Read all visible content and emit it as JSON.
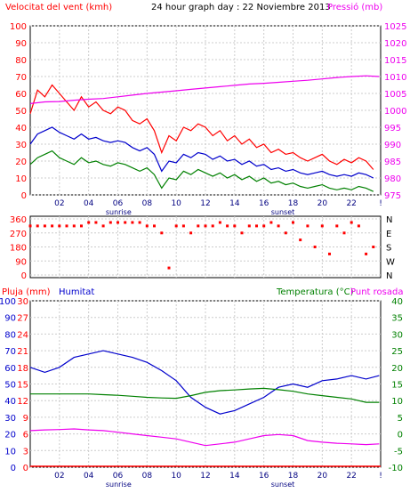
{
  "header": {
    "wind_label": "Velocitat del vent (kmh)",
    "title": "24 hour graph day : 22 Noviembre 2013",
    "pressure_label": "Pressió (mb)"
  },
  "lower_header": {
    "rain_label": "Pluja (mm)",
    "humidity_label": "Humitat",
    "temperature_label": "Temperatura (°C)",
    "dewpoint_label": "Punt rosada"
  },
  "colors": {
    "wind_gust": "#ff0000",
    "wind_avg": "#0000cc",
    "wind_low": "#008000",
    "pressure": "#ee00ee",
    "direction": "#ff0000",
    "rain": "#ff0000",
    "humidity": "#0000cc",
    "temperature": "#008000",
    "dewpoint": "#ee00ee",
    "axis_red": "#ff0000",
    "axis_magenta": "#ee00ee",
    "axis_green": "#008000",
    "axis_blue": "#0000cc",
    "time_labels": "#000080",
    "grid": "#cccccc"
  },
  "chart_data": [
    {
      "type": "line",
      "name": "wind_pressure",
      "title": "24 hour graph day : 22 Noviembre 2013",
      "x_ticks": [
        "02",
        "04",
        "06",
        "08",
        "10",
        "12",
        "14",
        "16",
        "18",
        "20",
        "22",
        "!"
      ],
      "x_range": [
        0,
        24
      ],
      "markers": [
        "sunrise",
        "sunset"
      ],
      "y_left": {
        "label": "Velocitat del vent (kmh)",
        "range": [
          0,
          100
        ],
        "ticks": [
          0,
          10,
          20,
          30,
          40,
          50,
          60,
          70,
          80,
          90,
          100
        ]
      },
      "y_right": {
        "label": "Pressió (mb)",
        "range": [
          975,
          1025
        ],
        "ticks": [
          975,
          980,
          985,
          990,
          995,
          1000,
          1005,
          1010,
          1015,
          1020,
          1025
        ]
      },
      "series": [
        {
          "role": "wind_gust",
          "axis": "left",
          "x": [
            0,
            0.5,
            1,
            1.5,
            2,
            2.5,
            3,
            3.5,
            4,
            4.5,
            5,
            5.5,
            6,
            6.5,
            7,
            7.5,
            8,
            8.5,
            9,
            9.5,
            10,
            10.5,
            11,
            11.5,
            12,
            12.5,
            13,
            13.5,
            14,
            14.5,
            15,
            15.5,
            16,
            16.5,
            17,
            17.5,
            18,
            18.5,
            19,
            19.5,
            20,
            20.5,
            21,
            21.5,
            22,
            22.5,
            23,
            23.5
          ],
          "y": [
            48,
            62,
            58,
            65,
            60,
            55,
            50,
            58,
            52,
            55,
            50,
            48,
            52,
            50,
            44,
            42,
            45,
            38,
            25,
            35,
            32,
            40,
            38,
            42,
            40,
            35,
            38,
            32,
            35,
            30,
            33,
            28,
            30,
            25,
            27,
            24,
            25,
            22,
            20,
            22,
            24,
            20,
            18,
            21,
            19,
            22,
            20,
            15
          ]
        },
        {
          "role": "wind_avg",
          "axis": "left",
          "x": [
            0,
            0.5,
            1,
            1.5,
            2,
            2.5,
            3,
            3.5,
            4,
            4.5,
            5,
            5.5,
            6,
            6.5,
            7,
            7.5,
            8,
            8.5,
            9,
            9.5,
            10,
            10.5,
            11,
            11.5,
            12,
            12.5,
            13,
            13.5,
            14,
            14.5,
            15,
            15.5,
            16,
            16.5,
            17,
            17.5,
            18,
            18.5,
            19,
            19.5,
            20,
            20.5,
            21,
            21.5,
            22,
            22.5,
            23,
            23.5
          ],
          "y": [
            30,
            36,
            38,
            40,
            37,
            35,
            33,
            36,
            33,
            34,
            32,
            31,
            32,
            31,
            28,
            26,
            28,
            24,
            14,
            20,
            19,
            24,
            22,
            25,
            24,
            21,
            23,
            20,
            21,
            18,
            20,
            17,
            18,
            15,
            16,
            14,
            15,
            13,
            12,
            13,
            14,
            12,
            11,
            12,
            11,
            13,
            12,
            10
          ]
        },
        {
          "role": "wind_low",
          "axis": "left",
          "x": [
            0,
            0.5,
            1,
            1.5,
            2,
            2.5,
            3,
            3.5,
            4,
            4.5,
            5,
            5.5,
            6,
            6.5,
            7,
            7.5,
            8,
            8.5,
            9,
            9.5,
            10,
            10.5,
            11,
            11.5,
            12,
            12.5,
            13,
            13.5,
            14,
            14.5,
            15,
            15.5,
            16,
            16.5,
            17,
            17.5,
            18,
            18.5,
            19,
            19.5,
            20,
            20.5,
            21,
            21.5,
            22,
            22.5,
            23,
            23.5
          ],
          "y": [
            18,
            22,
            24,
            26,
            22,
            20,
            18,
            22,
            19,
            20,
            18,
            17,
            19,
            18,
            16,
            14,
            16,
            12,
            4,
            10,
            9,
            14,
            12,
            15,
            13,
            11,
            13,
            10,
            12,
            9,
            11,
            8,
            10,
            7,
            8,
            6,
            7,
            5,
            4,
            5,
            6,
            4,
            3,
            4,
            3,
            5,
            4,
            2
          ]
        },
        {
          "role": "pressure",
          "axis": "right",
          "x": [
            0,
            1,
            2,
            3,
            4,
            5,
            6,
            7,
            8,
            9,
            10,
            11,
            12,
            13,
            14,
            15,
            16,
            17,
            18,
            19,
            20,
            21,
            22,
            23,
            23.9
          ],
          "y": [
            1002,
            1002.5,
            1002.6,
            1003,
            1003.3,
            1003.5,
            1004,
            1004.5,
            1005,
            1005.4,
            1005.8,
            1006.2,
            1006.6,
            1007,
            1007.4,
            1007.8,
            1008,
            1008.3,
            1008.6,
            1008.9,
            1009.3,
            1009.7,
            1010,
            1010.2,
            1010
          ]
        }
      ]
    },
    {
      "type": "scatter",
      "name": "wind_direction",
      "y_left": {
        "range": [
          0,
          360
        ],
        "ticks": [
          0,
          90,
          180,
          270,
          360
        ]
      },
      "y_right": {
        "ticks": [
          "N",
          "W",
          "S",
          "E",
          "N"
        ]
      },
      "x": [
        0,
        0.5,
        1,
        1.5,
        2,
        2.5,
        3,
        3.5,
        4,
        4.5,
        5,
        5.5,
        6,
        6.5,
        7,
        7.5,
        8,
        8.5,
        9,
        9.5,
        10,
        10.5,
        11,
        11.5,
        12,
        12.5,
        13,
        13.5,
        14,
        14.5,
        15,
        15.5,
        16,
        16.5,
        17,
        17.5,
        18,
        18.5,
        19,
        19.5,
        20,
        20.5,
        21,
        21.5,
        22,
        22.5,
        23,
        23.5
      ],
      "y": [
        315,
        315,
        315,
        315,
        315,
        315,
        315,
        315,
        337,
        337,
        315,
        337,
        337,
        337,
        337,
        337,
        315,
        315,
        270,
        45,
        315,
        315,
        270,
        315,
        315,
        315,
        337,
        315,
        315,
        270,
        315,
        315,
        315,
        337,
        315,
        270,
        337,
        225,
        315,
        180,
        315,
        135,
        315,
        270,
        337,
        315,
        135,
        180
      ]
    },
    {
      "type": "line",
      "name": "rain_humidity_temp",
      "x_ticks": [
        "02",
        "04",
        "06",
        "08",
        "10",
        "12",
        "14",
        "16",
        "18",
        "20",
        "22",
        "!"
      ],
      "x_range": [
        0,
        24
      ],
      "markers": [
        "sunrise",
        "sunset"
      ],
      "y_left_rain": {
        "label": "Pluja (mm)",
        "range": [
          0,
          30
        ],
        "ticks": [
          0,
          3,
          6,
          9,
          12,
          15,
          18,
          21,
          24,
          27,
          30
        ]
      },
      "y_left_humidity": {
        "label": "Humitat",
        "range": [
          0,
          100
        ],
        "ticks": [
          0,
          10,
          20,
          30,
          40,
          50,
          60,
          70,
          80,
          90,
          100
        ]
      },
      "y_right": {
        "label": "Temperatura (°C)",
        "range": [
          -10,
          40
        ],
        "ticks": [
          -10,
          -5,
          0,
          5,
          10,
          15,
          20,
          25,
          30,
          35,
          40
        ]
      },
      "series": [
        {
          "role": "rain",
          "axis": "rain",
          "x": [
            0,
            24
          ],
          "y": [
            0,
            0
          ]
        },
        {
          "role": "humidity",
          "axis": "humidity",
          "x": [
            0,
            1,
            2,
            3,
            4,
            5,
            6,
            7,
            8,
            9,
            10,
            11,
            12,
            13,
            14,
            15,
            16,
            17,
            18,
            19,
            20,
            21,
            22,
            23,
            23.9
          ],
          "y": [
            60,
            57,
            60,
            66,
            68,
            70,
            68,
            66,
            63,
            58,
            52,
            42,
            36,
            32,
            34,
            38,
            42,
            48,
            50,
            48,
            52,
            53,
            55,
            53,
            55
          ]
        },
        {
          "role": "temperature",
          "axis": "right",
          "x": [
            0,
            1,
            2,
            3,
            4,
            5,
            6,
            7,
            8,
            9,
            10,
            11,
            12,
            13,
            14,
            15,
            16,
            17,
            18,
            19,
            20,
            21,
            22,
            23,
            23.9
          ],
          "y": [
            12,
            12,
            12,
            12,
            12,
            11.8,
            11.6,
            11.3,
            11,
            10.8,
            10.7,
            11.5,
            12.5,
            13,
            13.2,
            13.5,
            13.7,
            13.3,
            12.8,
            12,
            11.5,
            11,
            10.5,
            9.5,
            9.5
          ]
        },
        {
          "role": "dewpoint",
          "axis": "right",
          "x": [
            0,
            1,
            2,
            3,
            4,
            5,
            6,
            7,
            8,
            9,
            10,
            11,
            12,
            13,
            14,
            15,
            16,
            17,
            18,
            19,
            20,
            21,
            22,
            23,
            23.9
          ],
          "y": [
            1,
            1.2,
            1.3,
            1.5,
            1.2,
            1,
            0.5,
            0,
            -0.5,
            -1,
            -1.5,
            -2.5,
            -3.5,
            -3,
            -2.5,
            -1.5,
            -0.5,
            -0.2,
            -0.5,
            -2,
            -2.5,
            -2.8,
            -3,
            -3.2,
            -3
          ]
        }
      ]
    }
  ]
}
